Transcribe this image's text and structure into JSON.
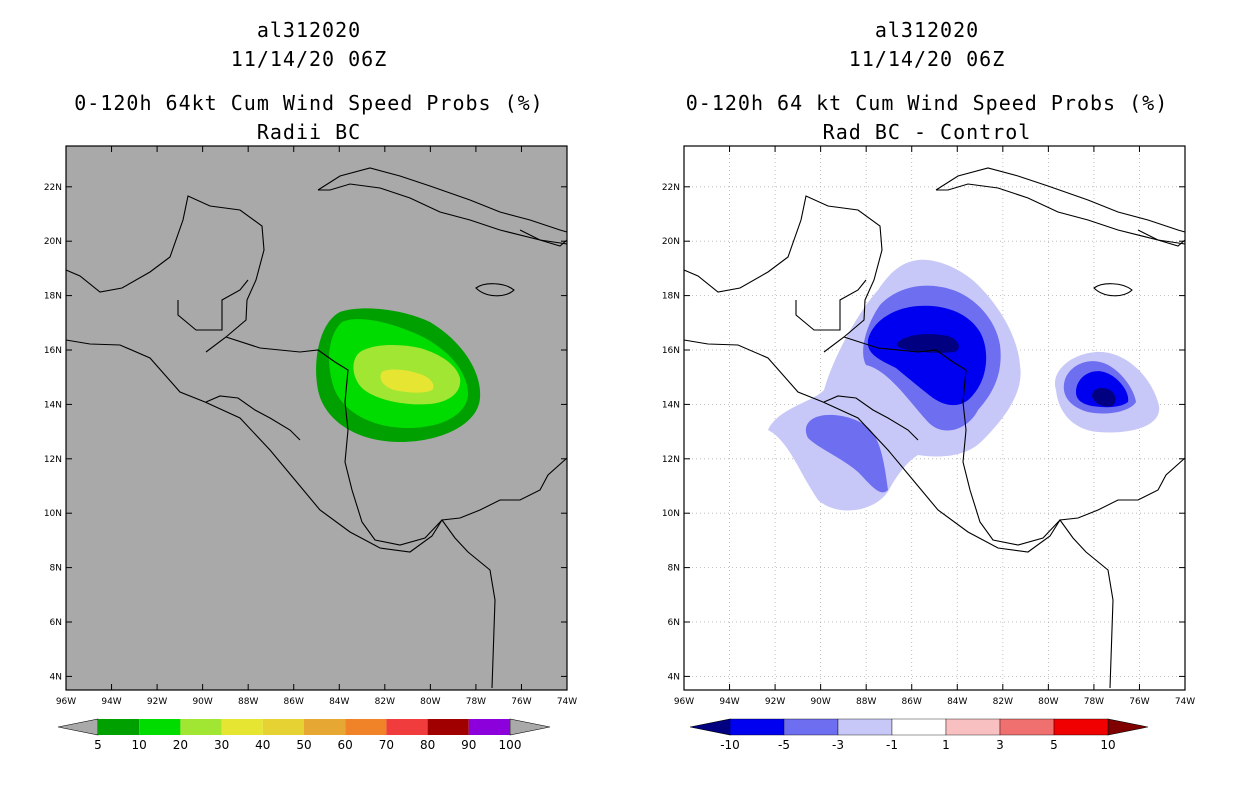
{
  "panels": [
    {
      "storm_id": "al312020",
      "datetime": "11/14/20 06Z",
      "product": "0-120h 64kt Cum Wind Speed Probs (%)",
      "subtitle": "Radii BC",
      "background_color": "#a9a9a9",
      "colorbar": {
        "labels": [
          "5",
          "10",
          "20",
          "30",
          "40",
          "50",
          "60",
          "70",
          "80",
          "90",
          "100"
        ],
        "colors": [
          "#00a000",
          "#00dc00",
          "#a0e632",
          "#e6e632",
          "#e6d232",
          "#e6a832",
          "#f08228",
          "#f03c3c",
          "#a00000",
          "#8c00dc"
        ],
        "arrow_colors": [
          "#a9a9a9",
          "#a9a9a9"
        ]
      }
    },
    {
      "storm_id": "al312020",
      "datetime": "11/14/20 06Z",
      "product": "0-120h 64 kt Cum Wind Speed Probs (%)",
      "subtitle": "Rad BC - Control",
      "background_color": "#ffffff",
      "colorbar": {
        "labels": [
          "-10",
          "-5",
          "-3",
          "-1",
          "1",
          "3",
          "5",
          "10"
        ],
        "colors": [
          "#0000f0",
          "#6e6ef0",
          "#c8c8f8",
          "#ffffff",
          "#f8c0c0",
          "#f07070",
          "#f00000"
        ],
        "arrow_colors": [
          "#000080",
          "#800000"
        ]
      }
    }
  ],
  "axes": {
    "x_ticks": [
      "96W",
      "94W",
      "92W",
      "90W",
      "88W",
      "86W",
      "84W",
      "82W",
      "80W",
      "78W",
      "76W",
      "74W"
    ],
    "y_ticks": [
      "4N",
      "6N",
      "8N",
      "10N",
      "12N",
      "14N",
      "16N",
      "18N",
      "20N",
      "22N"
    ],
    "lon_range": [
      -96,
      -74
    ],
    "lat_range": [
      3.5,
      23.5
    ]
  }
}
